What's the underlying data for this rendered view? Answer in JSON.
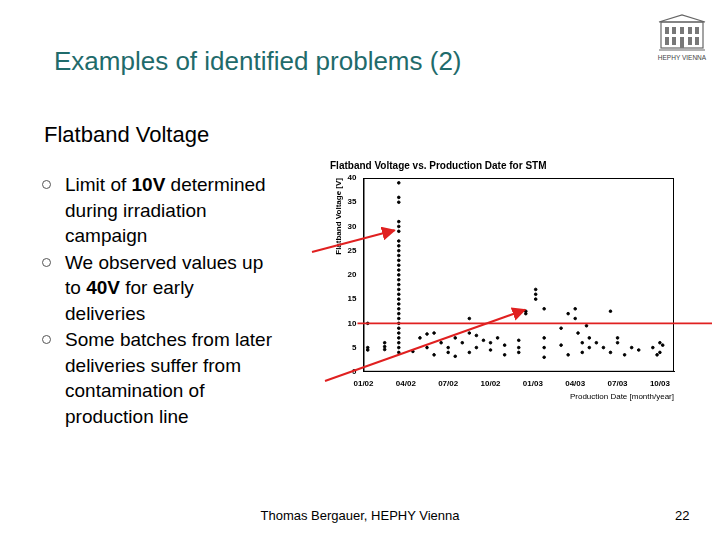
{
  "slide": {
    "title": "Examples of identified problems (2)",
    "subtitle": "Flatband Voltage",
    "bullets": [
      [
        [
          {
            "text": "Limit of "
          },
          {
            "text": "10V",
            "bold": true
          },
          {
            "text": " determined"
          }
        ],
        [
          {
            "text": "during irradiation"
          }
        ],
        [
          {
            "text": "campaign"
          }
        ]
      ],
      [
        [
          {
            "text": "We observed values up"
          }
        ],
        [
          {
            "text": "to "
          },
          {
            "text": "40V",
            "bold": true
          },
          {
            "text": " for early"
          }
        ],
        [
          {
            "text": "deliveries"
          }
        ]
      ],
      [
        [
          {
            "text": "Some batches from later"
          }
        ],
        [
          {
            "text": "deliveries suffer from"
          }
        ],
        [
          {
            "text": "contamination of"
          }
        ],
        [
          {
            "text": "production line"
          }
        ]
      ]
    ],
    "footer": "Thomas Bergauer, HEPHY Vienna",
    "page": 22,
    "logo": "HEPHY VIENNA"
  },
  "chart_data": {
    "type": "scatter",
    "title": "Flatband Voltage vs. Production Date for STM",
    "x_label": "Production Date [month/year]",
    "y_label": "Flatband Voltage [V]",
    "x": [
      0.3,
      0.3,
      0.3,
      1.5,
      1.5,
      1.5,
      2.5,
      2.5,
      2.5,
      2.5,
      2.5,
      2.5,
      2.5,
      2.5,
      2.5,
      2.5,
      2.5,
      2.5,
      2.5,
      2.5,
      2.5,
      2.5,
      2.5,
      2.5,
      2.5,
      2.5,
      2.5,
      2.5,
      2.5,
      2.5,
      2.5,
      2.5,
      2.5,
      2.5,
      2.5,
      2.5,
      4,
      4.5,
      5,
      5.5,
      6,
      6,
      6.5,
      7,
      7.5,
      7.5,
      8,
      8.5,
      9,
      9.5,
      10,
      10,
      5,
      8,
      3.5,
      4.5,
      6.5,
      9,
      7.5,
      11.5,
      11.5,
      12.2,
      12.2,
      12.2,
      11,
      11,
      11,
      12.8,
      12.8,
      12.8,
      12.8,
      14,
      14.5,
      15,
      15,
      15.2,
      15.5,
      15.5,
      16,
      16,
      14.5,
      16.5,
      14,
      15.8,
      17,
      17.5,
      18,
      18.5,
      18,
      19,
      17.5,
      19.5,
      20.5,
      21,
      21,
      20.8,
      21.2
    ],
    "values": [
      10,
      5,
      4.5,
      5.2,
      4.6,
      6,
      39,
      36,
      35,
      31,
      30,
      29,
      27,
      26,
      25,
      24,
      23,
      22,
      21,
      20,
      19,
      18,
      17,
      16,
      15,
      14,
      13,
      12,
      11,
      10,
      9,
      8,
      7,
      6,
      5,
      4,
      7,
      5,
      8,
      6,
      4,
      5,
      7,
      6,
      4,
      8,
      5,
      6.5,
      4.5,
      7,
      5.5,
      3.5,
      3.5,
      7.5,
      4.2,
      7.8,
      3.2,
      6,
      11,
      12.5,
      12,
      17,
      16,
      15,
      4,
      5,
      6.5,
      13,
      3,
      5,
      7,
      9,
      12,
      11,
      13,
      8,
      6,
      4,
      5,
      7,
      3.5,
      6,
      5.5,
      9.5,
      5,
      4,
      6,
      3.5,
      7,
      5,
      12.5,
      4.5,
      5,
      4,
      6,
      3.5,
      5.5
    ],
    "color": "#000000",
    "marker": "circle",
    "xlim": [
      0,
      22
    ],
    "ylim": [
      0,
      40
    ],
    "xticks": [
      {
        "value": 0,
        "label": "01/02"
      },
      {
        "value": 3,
        "label": "04/02"
      },
      {
        "value": 6,
        "label": "07/02"
      },
      {
        "value": 9,
        "label": "10/02"
      },
      {
        "value": 12,
        "label": "01/03"
      },
      {
        "value": 15,
        "label": "04/03"
      },
      {
        "value": 18,
        "label": "07/03"
      },
      {
        "value": 21,
        "label": "10/03"
      }
    ],
    "yticks": [
      0,
      5,
      10,
      15,
      20,
      25,
      30,
      35,
      40
    ],
    "grid": false,
    "reference_line": {
      "y": 10,
      "color": "#e02020"
    }
  }
}
